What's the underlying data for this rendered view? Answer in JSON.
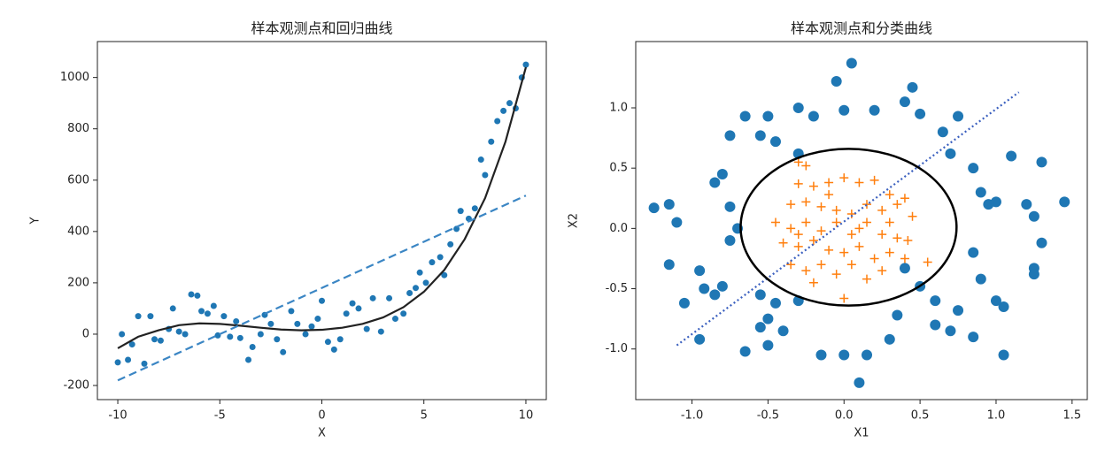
{
  "chart_data": [
    {
      "type": "scatter",
      "title": "样本观测点和回归曲线",
      "xlabel": "X",
      "ylabel": "Y",
      "xlim": [
        -11,
        11
      ],
      "ylim": [
        -255,
        1140
      ],
      "xticks": [
        -10,
        -5,
        0,
        5,
        10
      ],
      "yticks": [
        -200,
        0,
        200,
        400,
        600,
        800,
        1000
      ],
      "series": [
        {
          "type": "scatter",
          "marker": "circle",
          "color": "#1f77b4",
          "x": [
            -10,
            -9.8,
            -9.5,
            -9.3,
            -9,
            -8.7,
            -8.4,
            -8.2,
            -7.9,
            -7.5,
            -7.3,
            -7,
            -6.7,
            -6.4,
            -6.1,
            -5.9,
            -5.6,
            -5.3,
            -5.1,
            -4.8,
            -4.5,
            -4.2,
            -4,
            -3.6,
            -3.4,
            -3,
            -2.8,
            -2.5,
            -2.2,
            -1.9,
            -1.5,
            -1.2,
            -0.8,
            -0.5,
            -0.2,
            0,
            0.3,
            0.6,
            0.9,
            1.2,
            1.5,
            1.8,
            2.2,
            2.5,
            2.9,
            3.3,
            3.6,
            4,
            4.3,
            4.6,
            4.8,
            5.1,
            5.4,
            5.8,
            6,
            6.3,
            6.6,
            6.8,
            7.2,
            7.5,
            7.8,
            8,
            8.3,
            8.6,
            8.9,
            9.2,
            9.5,
            9.8,
            10
          ],
          "values": [
            -110,
            0,
            -100,
            -40,
            70,
            -115,
            70,
            -20,
            -25,
            20,
            100,
            10,
            0,
            155,
            150,
            90,
            80,
            110,
            -5,
            70,
            -10,
            50,
            -15,
            -100,
            -50,
            0,
            75,
            40,
            -20,
            -70,
            90,
            40,
            0,
            30,
            60,
            130,
            -30,
            -60,
            -20,
            80,
            120,
            100,
            20,
            140,
            10,
            140,
            60,
            80,
            160,
            180,
            240,
            200,
            280,
            300,
            230,
            350,
            410,
            480,
            450,
            490,
            680,
            620,
            750,
            830,
            870,
            900,
            880,
            1000,
            1050
          ]
        },
        {
          "type": "line",
          "style": "solid",
          "color": "#222222",
          "x": [
            -10,
            -9,
            -8,
            -7,
            -6,
            -5,
            -4,
            -3,
            -2,
            -1,
            0,
            1,
            2,
            3,
            4,
            5,
            6,
            7,
            8,
            9,
            10
          ],
          "values": [
            -55,
            -10,
            15,
            35,
            42,
            40,
            33,
            25,
            18,
            15,
            17,
            25,
            40,
            65,
            105,
            165,
            250,
            370,
            530,
            750,
            1040
          ]
        },
        {
          "type": "line",
          "style": "dashed",
          "color": "#3b86c4",
          "x": [
            -10,
            10
          ],
          "values": [
            -180,
            540
          ]
        }
      ]
    },
    {
      "type": "scatter",
      "title": "样本观测点和分类曲线",
      "xlabel": "X1",
      "ylabel": "X2",
      "xlim": [
        -1.37,
        1.6
      ],
      "ylim": [
        -1.42,
        1.55
      ],
      "xticks": [
        {
          "value": -1,
          "label": "-1.0"
        },
        {
          "value": -0.5,
          "label": "-0.5"
        },
        {
          "value": 0,
          "label": "0.0"
        },
        {
          "value": 0.5,
          "label": "0.5"
        },
        {
          "value": 1,
          "label": "1.0"
        },
        {
          "value": 1.5,
          "label": "1.5"
        }
      ],
      "yticks": [
        {
          "value": -1,
          "label": "-1.0"
        },
        {
          "value": -0.5,
          "label": "-0.5"
        },
        {
          "value": 0,
          "label": "0.0"
        },
        {
          "value": 0.5,
          "label": "0.5"
        },
        {
          "value": 1,
          "label": "1.0"
        }
      ],
      "series": [
        {
          "type": "scatter",
          "marker": "circle",
          "color": "#1f77b4",
          "x": [
            -1.25,
            -1.15,
            -1.1,
            -1.15,
            -1.05,
            -0.95,
            -0.92,
            -0.85,
            -0.95,
            -0.8,
            -0.85,
            -0.8,
            -0.75,
            -0.75,
            -0.7,
            -0.75,
            -0.65,
            -0.55,
            -0.5,
            -0.45,
            -0.3,
            -0.2,
            -0.3,
            -0.05,
            0,
            0.05,
            0.2,
            0.4,
            0.45,
            0.5,
            0.65,
            0.75,
            0.7,
            0.85,
            0.9,
            1,
            1.1,
            1.3,
            1.45,
            1.25,
            1.3,
            1.25,
            1.25,
            1.05,
            1,
            0.9,
            0.85,
            0.75,
            0.7,
            0.6,
            0.5,
            0.4,
            0.3,
            0.15,
            0.1,
            0,
            -0.15,
            -0.3,
            -0.4,
            -0.5,
            -0.55,
            -0.5,
            -0.65,
            -0.55,
            -0.45,
            0.6,
            0.85,
            1.05,
            0.35,
            1.2,
            0.95
          ],
          "values": [
            0.17,
            0.2,
            0.05,
            -0.3,
            -0.62,
            -0.35,
            -0.5,
            -0.55,
            -0.92,
            -0.48,
            0.38,
            0.45,
            0.18,
            -0.1,
            0,
            0.77,
            0.93,
            0.77,
            0.93,
            0.72,
            1,
            0.93,
            0.62,
            1.22,
            0.98,
            1.37,
            0.98,
            1.05,
            1.17,
            0.95,
            0.8,
            0.93,
            0.62,
            0.5,
            0.3,
            0.22,
            0.6,
            0.55,
            0.22,
            0.1,
            -0.12,
            -0.33,
            -0.38,
            -0.65,
            -0.6,
            -0.42,
            -0.2,
            -0.68,
            -0.85,
            -0.8,
            -0.48,
            -0.33,
            -0.92,
            -1.05,
            -1.28,
            -1.05,
            -1.05,
            -0.6,
            -0.85,
            -0.75,
            -0.82,
            -0.97,
            -1.02,
            -0.55,
            -0.62,
            -0.6,
            -0.9,
            -1.05,
            -0.72,
            0.2,
            0.2
          ]
        },
        {
          "type": "scatter",
          "marker": "plus",
          "color": "#ff7f0e",
          "x": [
            -0.3,
            -0.25,
            -0.3,
            -0.2,
            -0.1,
            0,
            0.1,
            0.2,
            0.3,
            0.4,
            -0.35,
            -0.25,
            -0.15,
            -0.05,
            0.05,
            0.15,
            0.25,
            0.35,
            0.45,
            -0.45,
            -0.35,
            -0.25,
            -0.15,
            -0.05,
            0.05,
            0.15,
            0.25,
            0.35,
            0.42,
            -0.4,
            -0.3,
            -0.2,
            -0.1,
            0,
            0.1,
            0.2,
            0.3,
            0.4,
            0.55,
            -0.35,
            -0.25,
            -0.15,
            -0.05,
            0.05,
            0.15,
            0.25,
            -0.2,
            0,
            -0.3,
            0.1,
            0.3,
            -0.1
          ],
          "values": [
            0.55,
            0.52,
            0.37,
            0.35,
            0.38,
            0.42,
            0.38,
            0.4,
            0.28,
            0.25,
            0.2,
            0.22,
            0.18,
            0.15,
            0.12,
            0.2,
            0.15,
            0.2,
            0.1,
            0.05,
            0,
            0.05,
            -0.02,
            0.05,
            -0.05,
            0.05,
            -0.05,
            -0.08,
            -0.1,
            -0.12,
            -0.15,
            -0.1,
            -0.18,
            -0.2,
            -0.15,
            -0.25,
            -0.2,
            -0.25,
            -0.28,
            -0.3,
            -0.35,
            -0.3,
            -0.38,
            -0.3,
            -0.42,
            -0.35,
            -0.45,
            -0.58,
            -0.05,
            0,
            0.05,
            0.28
          ]
        },
        {
          "type": "line",
          "style": "dotted",
          "color": "#3a5fbf",
          "x": [
            -1.1,
            1.15
          ],
          "values": [
            -0.97,
            1.13
          ]
        }
      ],
      "ellipse": {
        "cx": 0.03,
        "cy": 0.01,
        "rx": 0.71,
        "ry": 0.65,
        "color": "#000000"
      }
    }
  ]
}
